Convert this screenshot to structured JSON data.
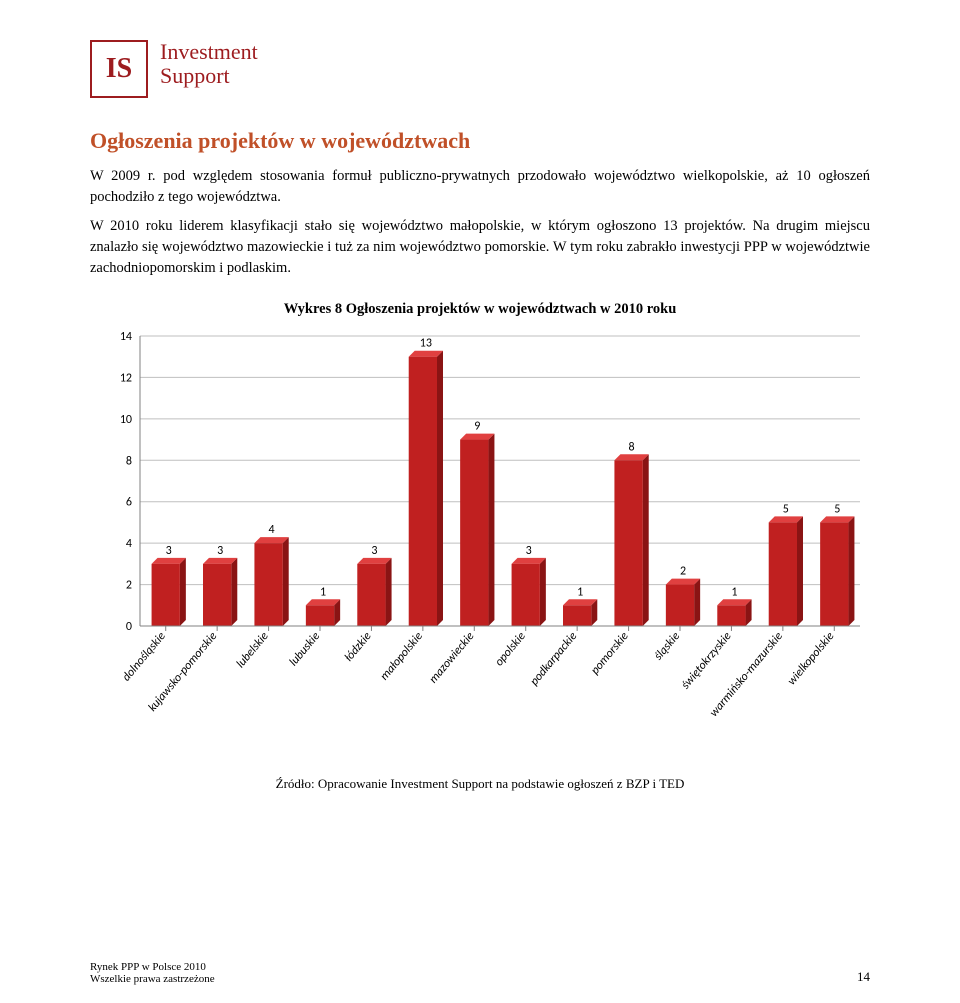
{
  "logo": {
    "square": "IS",
    "line1": "Investment",
    "line2": "Support"
  },
  "section_title": "Ogłoszenia projektów w województwach",
  "para1": "W 2009 r. pod względem stosowania formuł publiczno-prywatnych przodowało województwo wielkopolskie, aż 10 ogłoszeń pochodziło z tego województwa.",
  "para2": "W 2010 roku liderem klasyfikacji stało się województwo małopolskie, w którym ogłoszono 13 projektów. Na drugim miejscu znalazło się województwo mazowieckie i tuż za nim województwo pomorskie. W tym roku zabrakło inwestycji PPP w województwie zachodniopomorskim i podlaskim.",
  "chart": {
    "type": "bar",
    "caption": "Wykres 8 Ogłoszenia projektów w województwach w 2010 roku",
    "categories": [
      "dolnośląskie",
      "kujawsko-pomorskie",
      "lubelskie",
      "lubuskie",
      "łódzkie",
      "małopolskie",
      "mazowieckie",
      "opolskie",
      "podkarpackie",
      "pomorskie",
      "śląskie",
      "świętokrzyskie",
      "warmińsko-mazurskie",
      "wielkopolskie"
    ],
    "values": [
      3,
      3,
      4,
      1,
      3,
      13,
      9,
      3,
      1,
      8,
      2,
      1,
      5,
      5
    ],
    "ylim": [
      0,
      14
    ],
    "ytick_step": 2,
    "bar_face_color": "#c02020",
    "bar_top_color": "#e04040",
    "bar_side_color": "#8a1414",
    "plot_bg": "#ffffff",
    "grid_color": "#bfbfbf",
    "axis_color": "#808080",
    "label_fontsize": 12,
    "value_label_fontsize": 12,
    "tick_fontsize": 12,
    "label_color": "#000000",
    "bar_width_ratio": 0.55,
    "depth_dx": 6,
    "depth_dy": -6
  },
  "source": "Źródło: Opracowanie Investment Support na podstawie ogłoszeń z BZP i TED",
  "footer": {
    "line1": "Rynek PPP w Polsce 2010",
    "line2": "Wszelkie prawa zastrzeżone",
    "page": "14"
  }
}
